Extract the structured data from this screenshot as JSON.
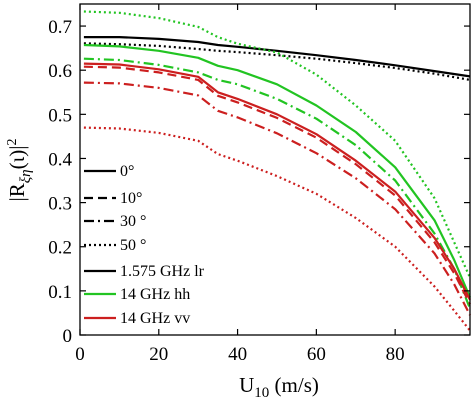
{
  "chart_data": {
    "type": "line",
    "title": "",
    "xlabel": "U",
    "xlabel_sub": "10",
    "xlabel_unit": " (m/s)",
    "ylabel_parts": [
      "|R",
      "ξη",
      "(ι)|",
      "2"
    ],
    "xlim": [
      0,
      99
    ],
    "ylim": [
      0,
      0.75
    ],
    "xticks": [
      0,
      20,
      40,
      60,
      80
    ],
    "yticks": [
      0,
      0.1,
      0.2,
      0.3,
      0.4,
      0.5,
      0.6,
      0.7
    ],
    "grid": false,
    "legend_position": "left",
    "legend": [
      {
        "label": "0°",
        "style": "solid",
        "color": "#000000"
      },
      {
        "label": "10°",
        "style": "dashed",
        "color": "#000000"
      },
      {
        "label": "30 °",
        "style": "dashdot",
        "color": "#000000"
      },
      {
        "label": "50 °",
        "style": "dotted",
        "color": "#000000"
      },
      {
        "label": "1.575 GHz lr",
        "style": "solid",
        "color": "#000000"
      },
      {
        "label": "14 GHz hh",
        "style": "solid",
        "color": "#22c422"
      },
      {
        "label": "14 GHz vv",
        "style": "solid",
        "color": "#cc1f1f"
      }
    ],
    "series": [
      {
        "color": "#000000",
        "style": "solid",
        "x": [
          1,
          10,
          20,
          30,
          35,
          40,
          50,
          60,
          70,
          80,
          90,
          99
        ],
        "y": [
          0.675,
          0.675,
          0.671,
          0.664,
          0.657,
          0.653,
          0.644,
          0.634,
          0.623,
          0.611,
          0.598,
          0.586
        ]
      },
      {
        "color": "#000000",
        "style": "dotted",
        "x": [
          1,
          10,
          20,
          30,
          35,
          40,
          50,
          60,
          70,
          80,
          90,
          99
        ],
        "y": [
          0.661,
          0.659,
          0.655,
          0.648,
          0.644,
          0.641,
          0.634,
          0.626,
          0.616,
          0.605,
          0.592,
          0.578
        ]
      },
      {
        "color": "#22c422",
        "style": "dotted",
        "x": [
          1,
          10,
          20,
          30,
          35,
          40,
          50,
          60,
          70,
          80,
          90,
          95,
          99
        ],
        "y": [
          0.733,
          0.73,
          0.718,
          0.698,
          0.675,
          0.66,
          0.64,
          0.59,
          0.52,
          0.44,
          0.31,
          0.21,
          0.13
        ]
      },
      {
        "color": "#22c422",
        "style": "solid",
        "x": [
          1,
          10,
          20,
          30,
          35,
          40,
          50,
          60,
          70,
          80,
          90,
          95,
          99
        ],
        "y": [
          0.657,
          0.654,
          0.644,
          0.628,
          0.61,
          0.6,
          0.568,
          0.52,
          0.46,
          0.38,
          0.26,
          0.17,
          0.085
        ]
      },
      {
        "color": "#22c422",
        "style": "dashdot",
        "x": [
          1,
          10,
          20,
          30,
          35,
          40,
          50,
          60,
          70,
          80,
          90,
          95,
          99
        ],
        "y": [
          0.626,
          0.623,
          0.612,
          0.595,
          0.578,
          0.568,
          0.535,
          0.49,
          0.43,
          0.35,
          0.23,
          0.15,
          0.06
        ]
      },
      {
        "color": "#cc1f1f",
        "style": "solid",
        "x": [
          1,
          10,
          20,
          30,
          35,
          40,
          50,
          60,
          70,
          80,
          90,
          95,
          99
        ],
        "y": [
          0.615,
          0.613,
          0.602,
          0.585,
          0.55,
          0.535,
          0.5,
          0.455,
          0.395,
          0.325,
          0.22,
          0.15,
          0.08
        ]
      },
      {
        "color": "#cc1f1f",
        "style": "dashed",
        "x": [
          1,
          10,
          20,
          30,
          35,
          40,
          50,
          60,
          70,
          80,
          90,
          95,
          99
        ],
        "y": [
          0.608,
          0.606,
          0.595,
          0.578,
          0.542,
          0.527,
          0.492,
          0.447,
          0.387,
          0.316,
          0.21,
          0.14,
          0.07
        ]
      },
      {
        "color": "#cc1f1f",
        "style": "dashdot",
        "x": [
          1,
          10,
          20,
          30,
          35,
          40,
          50,
          60,
          70,
          80,
          90,
          95,
          99
        ],
        "y": [
          0.572,
          0.57,
          0.56,
          0.543,
          0.508,
          0.493,
          0.457,
          0.412,
          0.355,
          0.285,
          0.185,
          0.115,
          0.045
        ]
      },
      {
        "color": "#cc1f1f",
        "style": "dotted",
        "x": [
          1,
          10,
          20,
          30,
          35,
          40,
          50,
          60,
          70,
          80,
          90,
          95,
          99
        ],
        "y": [
          0.47,
          0.468,
          0.458,
          0.44,
          0.41,
          0.395,
          0.36,
          0.32,
          0.265,
          0.2,
          0.11,
          0.055,
          0.01
        ]
      }
    ]
  }
}
